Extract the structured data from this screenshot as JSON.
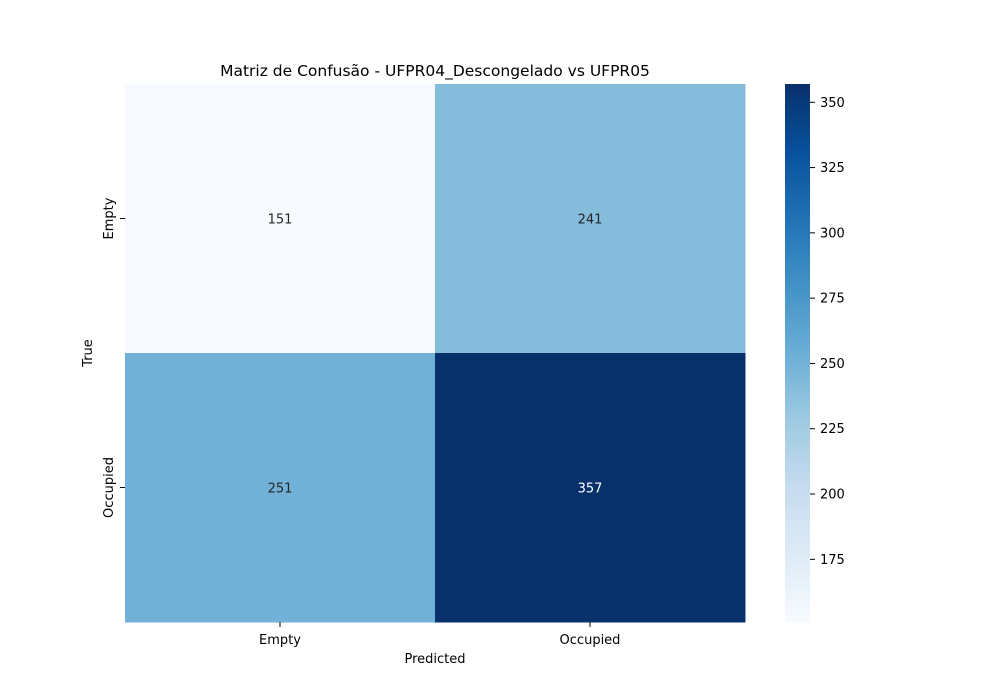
{
  "chart_data": {
    "type": "heatmap",
    "title": "Matriz de Confusão - UFPR04_Descongelado vs UFPR05",
    "xlabel": "Predicted",
    "ylabel": "True",
    "x_categories": [
      "Empty",
      "Occupied"
    ],
    "y_categories": [
      "Empty",
      "Occupied"
    ],
    "values": [
      [
        151,
        241
      ],
      [
        251,
        357
      ]
    ],
    "colormap": "Blues",
    "colorbar": {
      "range": [
        151,
        357
      ],
      "ticks": [
        "175",
        "200",
        "225",
        "250",
        "275",
        "300",
        "325",
        "350"
      ]
    },
    "grid": false
  }
}
